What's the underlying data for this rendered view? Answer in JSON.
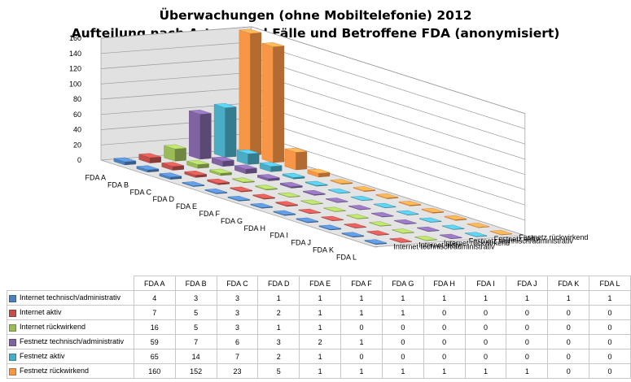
{
  "title": {
    "line1": "Überwachungen (ohne Mobiltelefonie) 2012",
    "line2": "Aufteilung nach Art, Anzahl Fälle und Betroffene FDA (anonymisiert)"
  },
  "chart_data": {
    "type": "bar",
    "subtype": "3d-column",
    "categories": [
      "FDA A",
      "FDA B",
      "FDA C",
      "FDA D",
      "FDA E",
      "FDA F",
      "FDA G",
      "FDA H",
      "FDA I",
      "FDA J",
      "FDA K",
      "FDA L"
    ],
    "series": [
      {
        "name": "Internet technisch/administrativ",
        "color": "#4f81bd",
        "values": [
          4,
          3,
          3,
          1,
          1,
          1,
          1,
          1,
          1,
          1,
          1,
          1
        ]
      },
      {
        "name": "Internet aktiv",
        "color": "#c0504d",
        "values": [
          7,
          5,
          3,
          2,
          1,
          1,
          1,
          0,
          0,
          0,
          0,
          0
        ]
      },
      {
        "name": "Internet rückwirkend",
        "color": "#9bbb59",
        "values": [
          16,
          5,
          3,
          1,
          1,
          0,
          0,
          0,
          0,
          0,
          0,
          0
        ]
      },
      {
        "name": "Festnetz technisch/administrativ",
        "color": "#8064a2",
        "values": [
          59,
          7,
          6,
          3,
          2,
          1,
          0,
          0,
          0,
          0,
          0,
          0
        ]
      },
      {
        "name": "Festnetz aktiv",
        "color": "#4bacc6",
        "values": [
          65,
          14,
          7,
          2,
          1,
          0,
          0,
          0,
          0,
          0,
          0,
          0
        ]
      },
      {
        "name": "Festnetz rückwirkend",
        "color": "#f79646",
        "values": [
          160,
          152,
          23,
          5,
          1,
          1,
          1,
          1,
          1,
          1,
          0,
          0
        ]
      }
    ],
    "yticks": [
      "0",
      "20",
      "40",
      "60",
      "80",
      "100",
      "120",
      "140",
      "160"
    ],
    "ylim": [
      0,
      160
    ],
    "grid": true,
    "legend": "data-table"
  }
}
